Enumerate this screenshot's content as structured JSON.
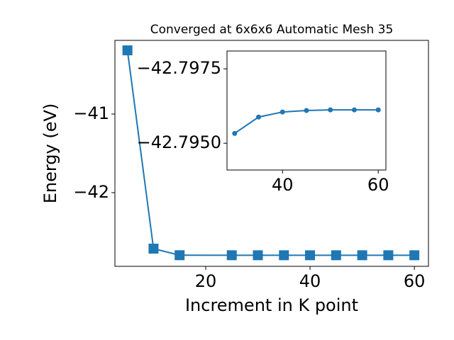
{
  "chart_data": [
    {
      "type": "line",
      "title": "Converged at 6x6x6 Automatic Mesh 35",
      "x_label": "Increment in K point",
      "y_label": "Energy (eV)",
      "x": [
        5,
        10,
        15,
        25,
        30,
        35,
        40,
        45,
        50,
        55,
        60
      ],
      "series": [
        {
          "color": "#1f77b4",
          "marker": "square",
          "values": [
            -40.19,
            -42.712,
            -42.7955,
            -42.7959,
            -42.7961,
            -42.7961,
            -42.7961,
            -42.7961,
            -42.7961,
            -42.7961,
            -42.7961
          ]
        }
      ],
      "xlim": [
        2.6,
        62.7
      ],
      "ylim": [
        -42.937,
        -40.063
      ],
      "xticks": [
        20,
        40,
        60
      ],
      "yticks": [
        {
          "value": -42,
          "label": "−42"
        },
        {
          "value": -41,
          "label": "−41"
        }
      ]
    },
    {
      "type": "line",
      "x": [
        30,
        35,
        40,
        45,
        50,
        55,
        60
      ],
      "series": [
        {
          "color": "#1f77b4",
          "marker": "circle",
          "values": [
            -42.79533,
            -42.79588,
            -42.79605,
            -42.7961,
            -42.79612,
            -42.79612,
            -42.79612
          ]
        }
      ],
      "xlim": [
        28.4,
        61.6
      ],
      "ylim": [
        -42.7941,
        -42.7981
      ],
      "xticks": [
        40,
        60
      ],
      "yticks": [
        {
          "value": -42.795,
          "label": "−42.7950"
        },
        {
          "value": -42.7975,
          "label": "−42.7975"
        }
      ]
    }
  ]
}
